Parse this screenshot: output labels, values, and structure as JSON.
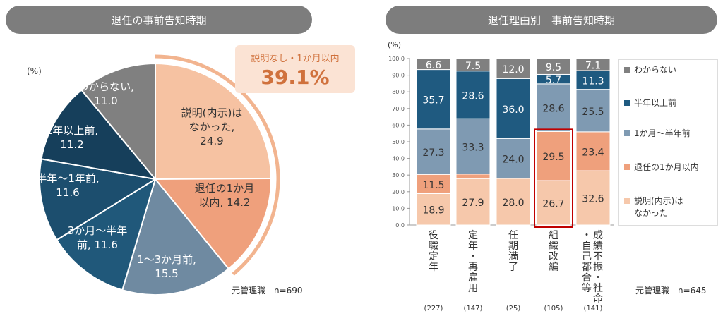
{
  "left_panel": {
    "title": "退任の事前告知時期",
    "unit": "(%)",
    "sample": "元管理職　n=690",
    "callout_label": "説明なし・1か月以内",
    "callout_value": "39.1%"
  },
  "right_panel": {
    "title": "退任理由別　事前告知時期",
    "unit": "(%)",
    "sample": "元管理職　n=645"
  },
  "chart_data": [
    {
      "type": "pie",
      "title": "退任の事前告知時期",
      "slices": [
        {
          "label": [
            "説明(内示)は",
            "なかった,"
          ],
          "value": 24.9,
          "color": "#f6c2a2",
          "text_color": "#333333"
        },
        {
          "label": [
            "退任の1か月",
            "以内,"
          ],
          "value": 14.2,
          "color": "#efa07c",
          "text_color": "#333333"
        },
        {
          "label": [
            "1～3か月前,"
          ],
          "value": 15.5,
          "color": "#6f8aa1",
          "text_color": "#ffffff"
        },
        {
          "label": [
            "3か月～半年",
            "前,"
          ],
          "value": 11.6,
          "color": "#20587a",
          "text_color": "#ffffff"
        },
        {
          "label": [
            "半年～1年前,"
          ],
          "value": 11.6,
          "color": "#1c4e6e",
          "text_color": "#ffffff"
        },
        {
          "label": [
            "1年以上前,"
          ],
          "value": 11.2,
          "color": "#163f5b",
          "text_color": "#ffffff"
        },
        {
          "label": [
            "わからない,"
          ],
          "value": 11.0,
          "color": "#808080",
          "text_color": "#ffffff"
        }
      ]
    },
    {
      "type": "bar",
      "stacked": true,
      "title": "退任理由別　事前告知時期",
      "categories": [
        "役職定年",
        "定年・再雇用",
        "任期満了",
        "組織改編",
        "成績不振・社命・自己都合等"
      ],
      "category_counts": [
        "(227)",
        "(147)",
        "(25)",
        "(105)",
        "(141)"
      ],
      "ylim": [
        0,
        100
      ],
      "yticks": [
        "0.0",
        "10.0",
        "20.0",
        "30.0",
        "40.0",
        "50.0",
        "60.0",
        "70.0",
        "80.0",
        "90.0",
        "100.0"
      ],
      "highlight_category": "組織改編",
      "series": [
        {
          "name": "説明(内示)はなかった",
          "values": [
            18.9,
            27.9,
            28.0,
            26.7,
            32.6
          ],
          "color": "#f6c8ab",
          "text_color": "#333333"
        },
        {
          "name": "退任の1か月以内",
          "values": [
            11.5,
            2.7,
            null,
            29.5,
            23.4
          ],
          "color": "#efa07c",
          "text_color": "#333333"
        },
        {
          "name": "1か月～半年前",
          "values": [
            27.3,
            33.3,
            24.0,
            28.6,
            25.5
          ],
          "color": "#7f9ab2",
          "text_color": "#333333"
        },
        {
          "name": "半年以上前",
          "values": [
            35.7,
            28.6,
            36.0,
            5.7,
            11.3
          ],
          "color": "#1f5a80",
          "text_color": "#ffffff"
        },
        {
          "name": "わからない",
          "values": [
            6.6,
            7.5,
            12.0,
            9.5,
            7.1
          ],
          "color": "#808080",
          "text_color": "#ffffff"
        }
      ],
      "legend": [
        "わからない",
        "半年以上前",
        "1か月～半年前",
        "退任の1か月以内",
        "説明(内示)は\nなかった"
      ]
    }
  ]
}
